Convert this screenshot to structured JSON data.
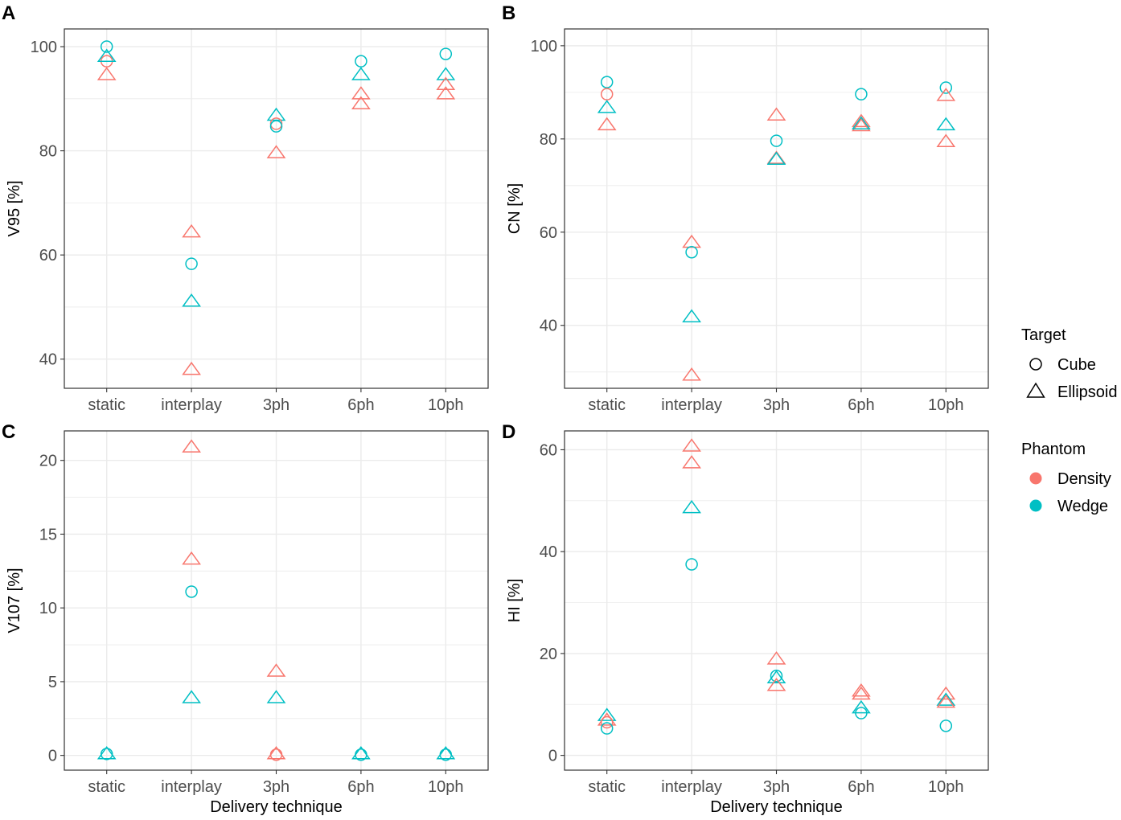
{
  "colors": {
    "Density": "#F8766D",
    "Wedge": "#00BFC4"
  },
  "legend": {
    "target_title": "Target",
    "target_items": [
      {
        "label": "Cube",
        "shape": "circle"
      },
      {
        "label": "Ellipsoid",
        "shape": "triangle"
      }
    ],
    "phantom_title": "Phantom",
    "phantom_items": [
      {
        "label": "Density",
        "color": "#F8766D"
      },
      {
        "label": "Wedge",
        "color": "#00BFC4"
      }
    ]
  },
  "chart_data": [
    {
      "id": "A",
      "type": "scatter",
      "letter": "A",
      "categories": [
        "static",
        "interplay",
        "3ph",
        "6ph",
        "10ph"
      ],
      "ylabel": "V95 [%]",
      "xlabel": "",
      "ylim": [
        34.4,
        103.4
      ],
      "yticks": [
        40,
        60,
        80,
        100
      ],
      "yminor": [
        50,
        70,
        90
      ],
      "points": [
        {
          "x": "static",
          "y": 100,
          "target": "Cube",
          "phantom": "Wedge"
        },
        {
          "x": "static",
          "y": 97.2,
          "target": "Cube",
          "phantom": "Density"
        },
        {
          "x": "static",
          "y": 98.1,
          "target": "Ellipsoid",
          "phantom": "Wedge"
        },
        {
          "x": "static",
          "y": 94.6,
          "target": "Ellipsoid",
          "phantom": "Density"
        },
        {
          "x": "interplay",
          "y": 64.4,
          "target": "Ellipsoid",
          "phantom": "Density"
        },
        {
          "x": "interplay",
          "y": 58.3,
          "target": "Cube",
          "phantom": "Wedge"
        },
        {
          "x": "interplay",
          "y": 51.1,
          "target": "Ellipsoid",
          "phantom": "Wedge"
        },
        {
          "x": "interplay",
          "y": 38.0,
          "target": "Ellipsoid",
          "phantom": "Density"
        },
        {
          "x": "3ph",
          "y": 86.8,
          "target": "Ellipsoid",
          "phantom": "Wedge"
        },
        {
          "x": "3ph",
          "y": 85.2,
          "target": "Cube",
          "phantom": "Density"
        },
        {
          "x": "3ph",
          "y": 84.7,
          "target": "Cube",
          "phantom": "Wedge"
        },
        {
          "x": "3ph",
          "y": 79.6,
          "target": "Ellipsoid",
          "phantom": "Density"
        },
        {
          "x": "6ph",
          "y": 97.2,
          "target": "Cube",
          "phantom": "Wedge"
        },
        {
          "x": "6ph",
          "y": 94.6,
          "target": "Ellipsoid",
          "phantom": "Wedge"
        },
        {
          "x": "6ph",
          "y": 90.9,
          "target": "Ellipsoid",
          "phantom": "Density"
        },
        {
          "x": "6ph",
          "y": 89.0,
          "target": "Ellipsoid",
          "phantom": "Density"
        },
        {
          "x": "10ph",
          "y": 98.6,
          "target": "Cube",
          "phantom": "Wedge"
        },
        {
          "x": "10ph",
          "y": 94.6,
          "target": "Ellipsoid",
          "phantom": "Wedge"
        },
        {
          "x": "10ph",
          "y": 92.7,
          "target": "Ellipsoid",
          "phantom": "Density"
        },
        {
          "x": "10ph",
          "y": 90.9,
          "target": "Ellipsoid",
          "phantom": "Density"
        }
      ]
    },
    {
      "id": "B",
      "type": "scatter",
      "letter": "B",
      "categories": [
        "static",
        "interplay",
        "3ph",
        "6ph",
        "10ph"
      ],
      "ylabel": "CN [%]",
      "xlabel": "",
      "ylim": [
        26.5,
        103.6
      ],
      "yticks": [
        40,
        60,
        80,
        100
      ],
      "yminor": [
        30,
        50,
        70,
        90
      ],
      "points": [
        {
          "x": "static",
          "y": 92.2,
          "target": "Cube",
          "phantom": "Wedge"
        },
        {
          "x": "static",
          "y": 89.6,
          "target": "Cube",
          "phantom": "Density"
        },
        {
          "x": "static",
          "y": 86.7,
          "target": "Ellipsoid",
          "phantom": "Wedge"
        },
        {
          "x": "static",
          "y": 83.0,
          "target": "Ellipsoid",
          "phantom": "Density"
        },
        {
          "x": "interplay",
          "y": 57.8,
          "target": "Ellipsoid",
          "phantom": "Density"
        },
        {
          "x": "interplay",
          "y": 55.7,
          "target": "Cube",
          "phantom": "Wedge"
        },
        {
          "x": "interplay",
          "y": 41.8,
          "target": "Ellipsoid",
          "phantom": "Wedge"
        },
        {
          "x": "interplay",
          "y": 29.3,
          "target": "Ellipsoid",
          "phantom": "Density"
        },
        {
          "x": "3ph",
          "y": 85.1,
          "target": "Ellipsoid",
          "phantom": "Density"
        },
        {
          "x": "3ph",
          "y": 79.6,
          "target": "Cube",
          "phantom": "Wedge"
        },
        {
          "x": "3ph",
          "y": 75.8,
          "target": "Ellipsoid",
          "phantom": "Density"
        },
        {
          "x": "3ph",
          "y": 75.6,
          "target": "Ellipsoid",
          "phantom": "Wedge"
        },
        {
          "x": "6ph",
          "y": 89.6,
          "target": "Cube",
          "phantom": "Wedge"
        },
        {
          "x": "6ph",
          "y": 83.7,
          "target": "Ellipsoid",
          "phantom": "Density"
        },
        {
          "x": "6ph",
          "y": 82.8,
          "target": "Ellipsoid",
          "phantom": "Density"
        },
        {
          "x": "6ph",
          "y": 83.2,
          "target": "Ellipsoid",
          "phantom": "Wedge"
        },
        {
          "x": "10ph",
          "y": 91.0,
          "target": "Cube",
          "phantom": "Wedge"
        },
        {
          "x": "10ph",
          "y": 89.3,
          "target": "Ellipsoid",
          "phantom": "Density"
        },
        {
          "x": "10ph",
          "y": 83.0,
          "target": "Ellipsoid",
          "phantom": "Wedge"
        },
        {
          "x": "10ph",
          "y": 79.4,
          "target": "Ellipsoid",
          "phantom": "Density"
        }
      ]
    },
    {
      "id": "C",
      "type": "scatter",
      "letter": "C",
      "categories": [
        "static",
        "interplay",
        "3ph",
        "6ph",
        "10ph"
      ],
      "ylabel": "V107 [%]",
      "xlabel": "Delivery technique",
      "ylim": [
        -1.0,
        22.0
      ],
      "yticks": [
        0,
        5,
        10,
        15,
        20
      ],
      "yminor": [
        2.5,
        7.5,
        12.5,
        17.5
      ],
      "points": [
        {
          "x": "static",
          "y": 0.1,
          "target": "Cube",
          "phantom": "Wedge"
        },
        {
          "x": "static",
          "y": 0.1,
          "target": "Ellipsoid",
          "phantom": "Wedge"
        },
        {
          "x": "interplay",
          "y": 20.9,
          "target": "Ellipsoid",
          "phantom": "Density"
        },
        {
          "x": "interplay",
          "y": 13.3,
          "target": "Ellipsoid",
          "phantom": "Density"
        },
        {
          "x": "interplay",
          "y": 11.1,
          "target": "Cube",
          "phantom": "Wedge"
        },
        {
          "x": "interplay",
          "y": 3.9,
          "target": "Ellipsoid",
          "phantom": "Wedge"
        },
        {
          "x": "3ph",
          "y": 5.7,
          "target": "Ellipsoid",
          "phantom": "Density"
        },
        {
          "x": "3ph",
          "y": 3.9,
          "target": "Ellipsoid",
          "phantom": "Wedge"
        },
        {
          "x": "3ph",
          "y": 0.1,
          "target": "Ellipsoid",
          "phantom": "Density"
        },
        {
          "x": "3ph",
          "y": 0.05,
          "target": "Cube",
          "phantom": "Density"
        },
        {
          "x": "6ph",
          "y": 0.1,
          "target": "Ellipsoid",
          "phantom": "Wedge"
        },
        {
          "x": "6ph",
          "y": 0.05,
          "target": "Cube",
          "phantom": "Wedge"
        },
        {
          "x": "10ph",
          "y": 0.1,
          "target": "Ellipsoid",
          "phantom": "Wedge"
        },
        {
          "x": "10ph",
          "y": 0.05,
          "target": "Cube",
          "phantom": "Wedge"
        }
      ]
    },
    {
      "id": "D",
      "type": "scatter",
      "letter": "D",
      "categories": [
        "static",
        "interplay",
        "3ph",
        "6ph",
        "10ph"
      ],
      "ylabel": "HI [%]",
      "xlabel": "Delivery technique",
      "ylim": [
        -2.9,
        63.7
      ],
      "yticks": [
        0,
        20,
        40,
        60
      ],
      "yminor": [
        10,
        30,
        50
      ],
      "points": [
        {
          "x": "static",
          "y": 7.8,
          "target": "Ellipsoid",
          "phantom": "Wedge"
        },
        {
          "x": "static",
          "y": 6.9,
          "target": "Ellipsoid",
          "phantom": "Density"
        },
        {
          "x": "static",
          "y": 6.5,
          "target": "Cube",
          "phantom": "Density"
        },
        {
          "x": "static",
          "y": 5.3,
          "target": "Cube",
          "phantom": "Wedge"
        },
        {
          "x": "interplay",
          "y": 60.7,
          "target": "Ellipsoid",
          "phantom": "Density"
        },
        {
          "x": "interplay",
          "y": 57.4,
          "target": "Ellipsoid",
          "phantom": "Density"
        },
        {
          "x": "interplay",
          "y": 48.6,
          "target": "Ellipsoid",
          "phantom": "Wedge"
        },
        {
          "x": "interplay",
          "y": 37.5,
          "target": "Cube",
          "phantom": "Wedge"
        },
        {
          "x": "3ph",
          "y": 18.9,
          "target": "Ellipsoid",
          "phantom": "Density"
        },
        {
          "x": "3ph",
          "y": 15.6,
          "target": "Cube",
          "phantom": "Wedge"
        },
        {
          "x": "3ph",
          "y": 15.2,
          "target": "Ellipsoid",
          "phantom": "Wedge"
        },
        {
          "x": "3ph",
          "y": 13.7,
          "target": "Ellipsoid",
          "phantom": "Density"
        },
        {
          "x": "6ph",
          "y": 12.6,
          "target": "Ellipsoid",
          "phantom": "Density"
        },
        {
          "x": "6ph",
          "y": 12.0,
          "target": "Ellipsoid",
          "phantom": "Density"
        },
        {
          "x": "6ph",
          "y": 9.3,
          "target": "Ellipsoid",
          "phantom": "Wedge"
        },
        {
          "x": "6ph",
          "y": 8.3,
          "target": "Cube",
          "phantom": "Wedge"
        },
        {
          "x": "10ph",
          "y": 12.0,
          "target": "Ellipsoid",
          "phantom": "Density"
        },
        {
          "x": "10ph",
          "y": 10.8,
          "target": "Ellipsoid",
          "phantom": "Wedge"
        },
        {
          "x": "10ph",
          "y": 10.4,
          "target": "Ellipsoid",
          "phantom": "Density"
        },
        {
          "x": "10ph",
          "y": 5.8,
          "target": "Cube",
          "phantom": "Wedge"
        }
      ]
    }
  ]
}
